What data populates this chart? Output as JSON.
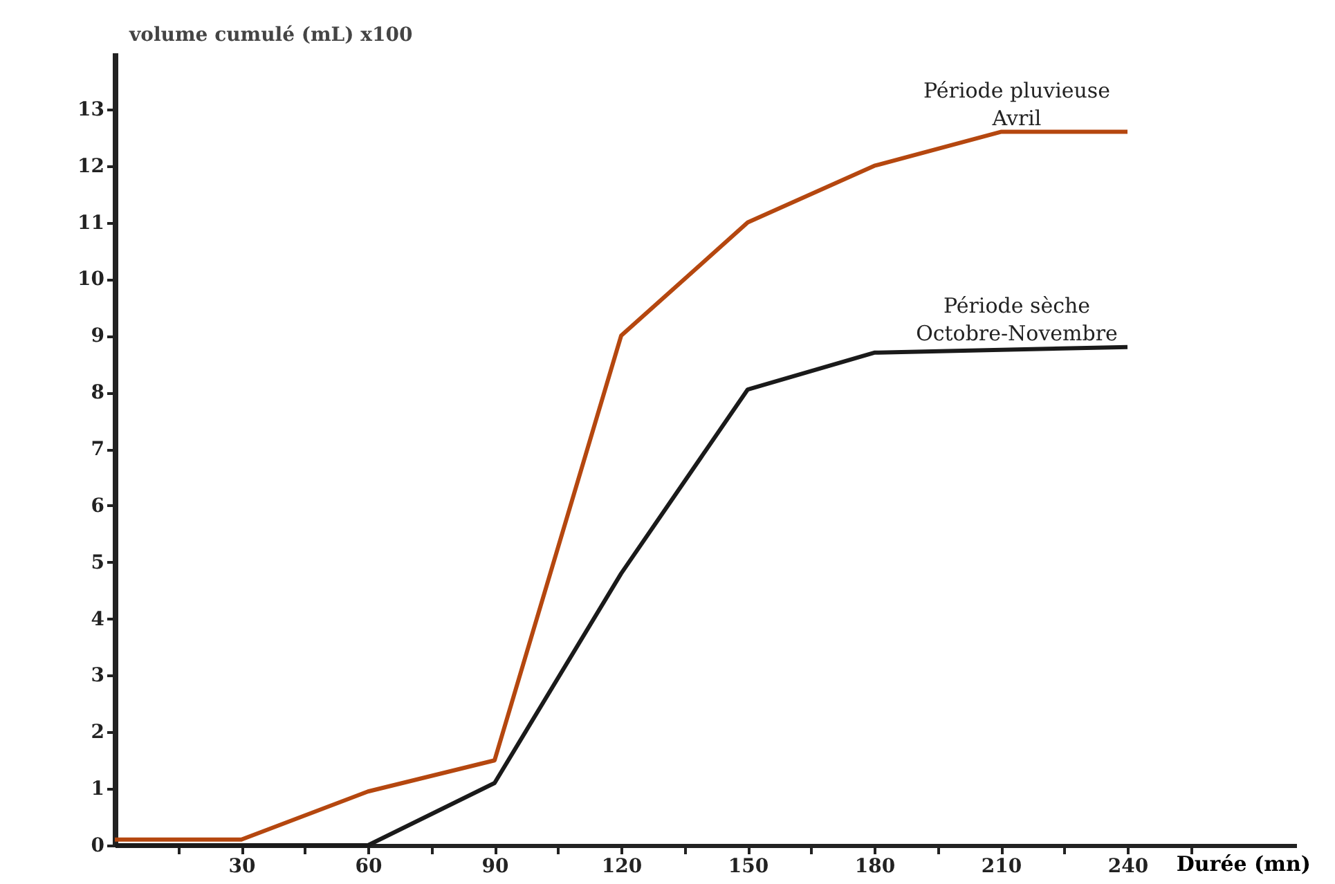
{
  "chart_data": {
    "type": "line",
    "xlabel": "Durée (mn)",
    "ylabel": "volume cumulé (mL) x100",
    "x": [
      0,
      30,
      60,
      90,
      120,
      150,
      180,
      210,
      240
    ],
    "series": [
      {
        "name": "Période pluvieuse\nAvril",
        "color": "#b5470f",
        "values": [
          0.1,
          0.1,
          0.95,
          1.5,
          9,
          11,
          12,
          12.6,
          12.6
        ]
      },
      {
        "name": "Période sèche\nOctobre-Novembre",
        "color": "#1a1a1a",
        "x": [
          0,
          30,
          60,
          90,
          120,
          150,
          180,
          240
        ],
        "values": [
          0,
          0,
          0,
          1.1,
          4.8,
          8.05,
          8.7,
          8.8
        ]
      }
    ],
    "xlim": [
      0,
      280
    ],
    "ylim": [
      0,
      14
    ],
    "xticks": [
      {
        "value": 15,
        "label": null
      },
      30,
      {
        "value": 45,
        "label": null
      },
      60,
      {
        "value": 75,
        "label": null
      },
      90,
      {
        "value": 105,
        "label": null
      },
      120,
      {
        "value": 135,
        "label": null
      },
      150,
      {
        "value": 165,
        "label": null
      },
      180,
      {
        "value": 195,
        "label": null
      },
      210,
      {
        "value": 225,
        "label": null
      },
      240,
      {
        "value": 255,
        "label": null
      }
    ],
    "yticks": [
      0,
      1,
      2,
      3,
      4,
      5,
      6,
      7,
      8,
      9,
      10,
      11,
      12,
      13
    ],
    "legend": false,
    "grid": false,
    "marker": "none",
    "line_style": "solid"
  }
}
